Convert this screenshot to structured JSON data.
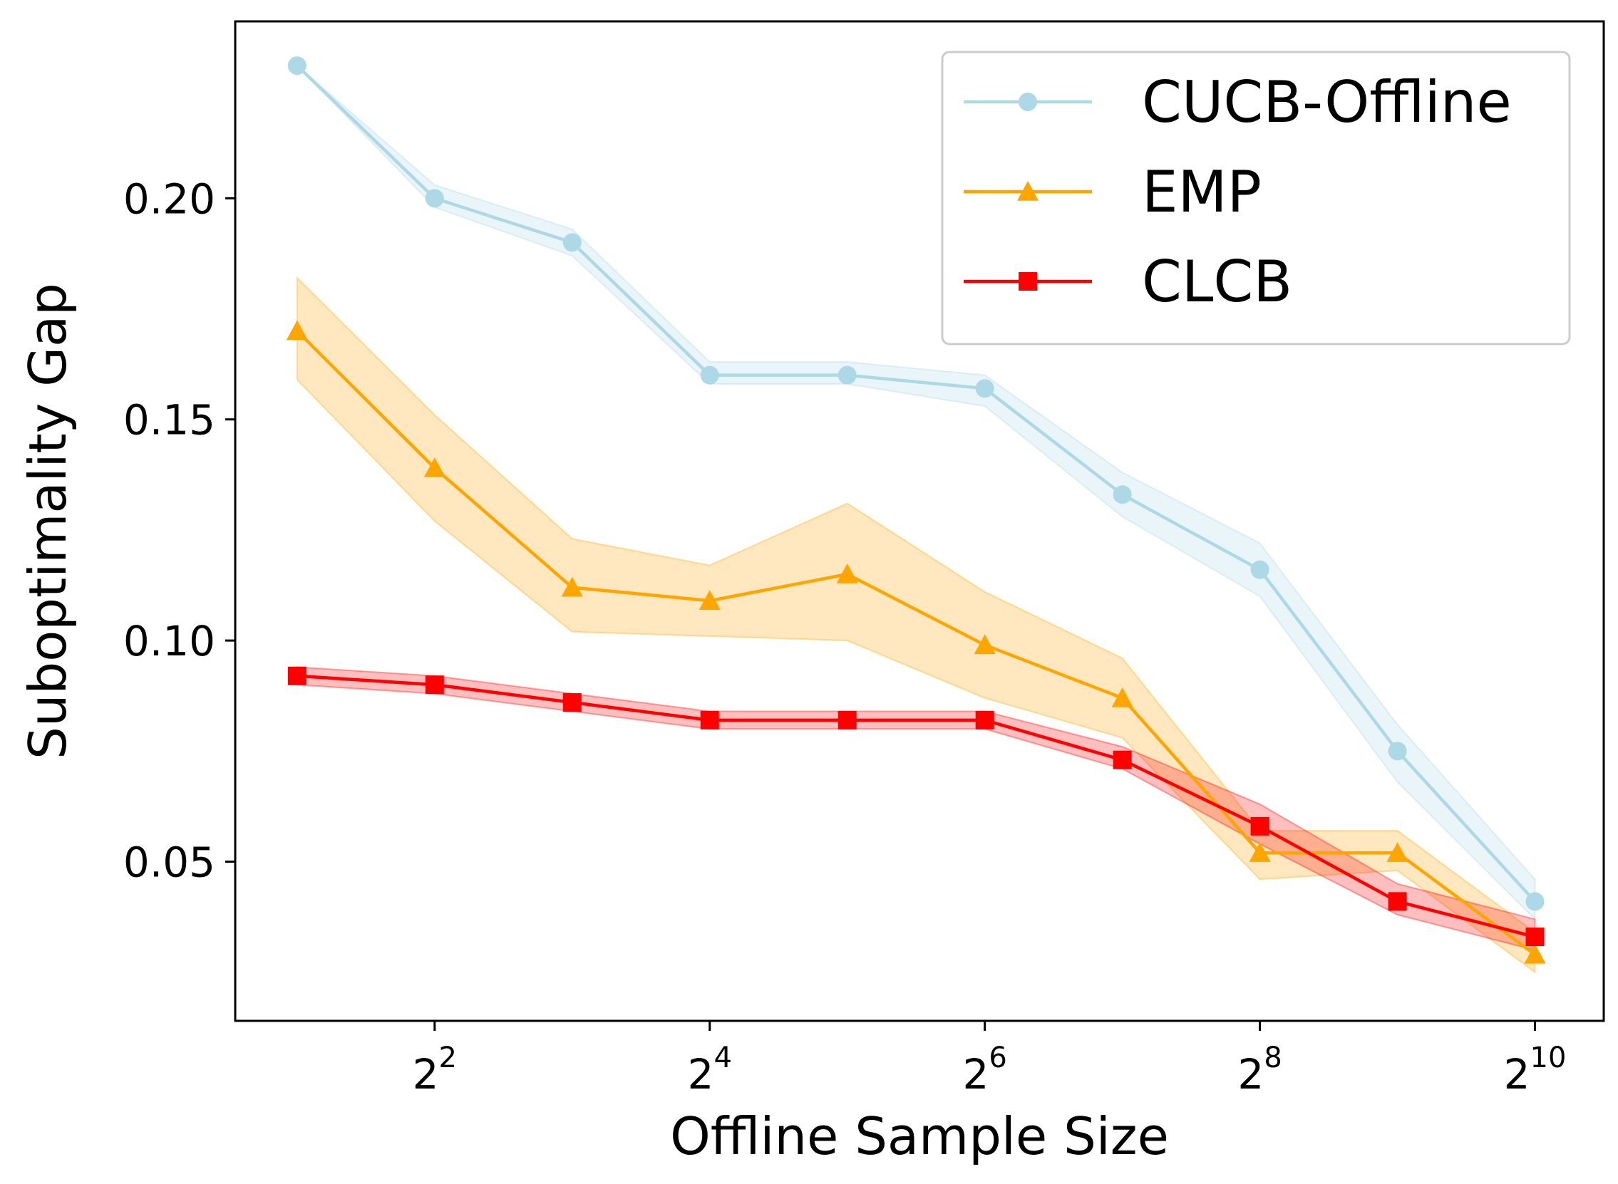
{
  "chart_data": {
    "type": "line",
    "xlabel": "Offline Sample Size",
    "ylabel": "Suboptimality Gap",
    "x_scale": "log2",
    "x": [
      2,
      4,
      8,
      16,
      32,
      64,
      128,
      256,
      512,
      1024
    ],
    "x_ticks": [
      {
        "value": 4,
        "base": "2",
        "exp": "2"
      },
      {
        "value": 16,
        "base": "2",
        "exp": "4"
      },
      {
        "value": 64,
        "base": "2",
        "exp": "6"
      },
      {
        "value": 256,
        "base": "2",
        "exp": "8"
      },
      {
        "value": 1024,
        "base": "2",
        "exp": "10"
      }
    ],
    "y_ticks": [
      "0.05",
      "0.10",
      "0.15",
      "0.20"
    ],
    "ylim": [
      0.014,
      0.24
    ],
    "xlim_exp": [
      0.55,
      10.5
    ],
    "grid": false,
    "legend_position": "top-right",
    "series": [
      {
        "name": "CUCB-Offline",
        "color": "#add8e6",
        "marker": "circle",
        "values": [
          0.23,
          0.2,
          0.19,
          0.16,
          0.16,
          0.157,
          0.133,
          0.116,
          0.075,
          0.041
        ],
        "lower": [
          0.23,
          0.198,
          0.187,
          0.158,
          0.158,
          0.153,
          0.128,
          0.11,
          0.068,
          0.037
        ],
        "upper": [
          0.23,
          0.203,
          0.193,
          0.163,
          0.163,
          0.16,
          0.138,
          0.122,
          0.081,
          0.046
        ]
      },
      {
        "name": "EMP",
        "color": "#ffa500",
        "marker": "triangle",
        "values": [
          0.17,
          0.139,
          0.112,
          0.109,
          0.115,
          0.099,
          0.087,
          0.052,
          0.052,
          0.029
        ],
        "lower": [
          0.159,
          0.127,
          0.102,
          0.101,
          0.1,
          0.087,
          0.078,
          0.046,
          0.048,
          0.025
        ],
        "upper": [
          0.182,
          0.151,
          0.123,
          0.117,
          0.131,
          0.111,
          0.096,
          0.057,
          0.057,
          0.034
        ]
      },
      {
        "name": "CLCB",
        "color": "#ff0000",
        "marker": "square",
        "values": [
          0.092,
          0.09,
          0.086,
          0.082,
          0.082,
          0.082,
          0.073,
          0.058,
          0.041,
          0.033
        ],
        "lower": [
          0.09,
          0.088,
          0.084,
          0.08,
          0.08,
          0.08,
          0.071,
          0.054,
          0.038,
          0.03
        ],
        "upper": [
          0.094,
          0.092,
          0.088,
          0.084,
          0.084,
          0.084,
          0.076,
          0.063,
          0.045,
          0.037
        ]
      }
    ]
  }
}
